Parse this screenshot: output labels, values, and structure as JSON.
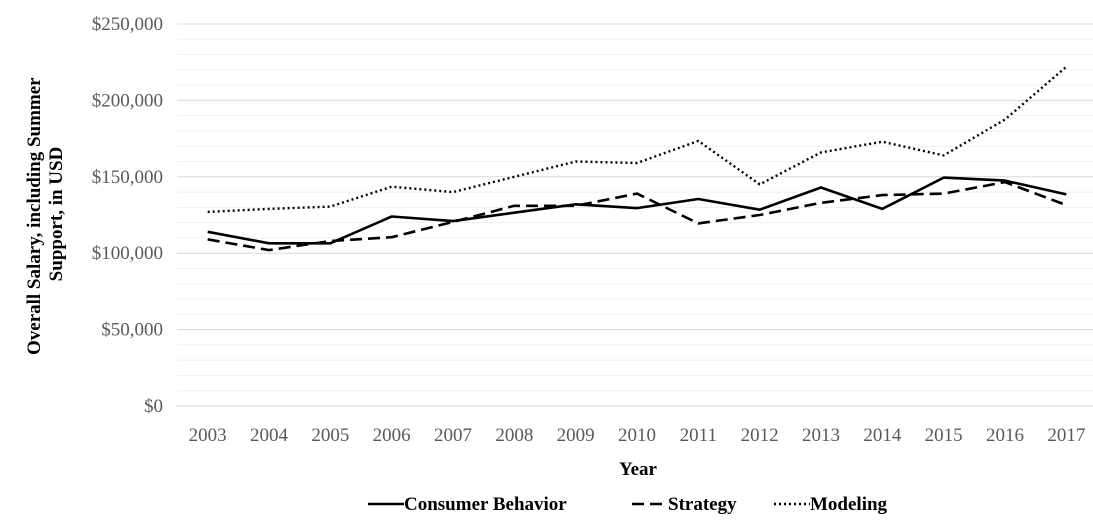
{
  "chart_data": {
    "type": "line",
    "title": "",
    "xlabel": "Year",
    "ylabel_lines": [
      "Overall Salary, including Summer",
      "Support, in USD"
    ],
    "categories": [
      "2003",
      "2004",
      "2005",
      "2006",
      "2007",
      "2008",
      "2009",
      "2010",
      "2011",
      "2012",
      "2013",
      "2014",
      "2015",
      "2016",
      "2017"
    ],
    "ylim": [
      0,
      250000
    ],
    "y_ticks": [
      0,
      50000,
      100000,
      150000,
      200000,
      250000
    ],
    "y_tick_labels": [
      "$0",
      "$50,000",
      "$100,000",
      "$150,000",
      "$200,000",
      "$250,000"
    ],
    "grid": "horizontal",
    "legend_position": "bottom",
    "series": [
      {
        "name": "Consumer Behavior",
        "style": "solid",
        "values": [
          114000,
          106500,
          106500,
          124000,
          121000,
          126500,
          132000,
          129500,
          135500,
          128500,
          143000,
          129000,
          149500,
          147500,
          138500
        ]
      },
      {
        "name": "Strategy",
        "style": "dashed",
        "values": [
          109000,
          102000,
          108000,
          110500,
          120500,
          131000,
          131000,
          139000,
          119500,
          125000,
          133000,
          138000,
          139000,
          146500,
          131500
        ]
      },
      {
        "name": "Modeling",
        "style": "dotted",
        "values": [
          127000,
          129000,
          130500,
          143500,
          140000,
          150000,
          160000,
          159000,
          173500,
          145000,
          166000,
          173000,
          164000,
          187500,
          222000
        ]
      }
    ]
  }
}
